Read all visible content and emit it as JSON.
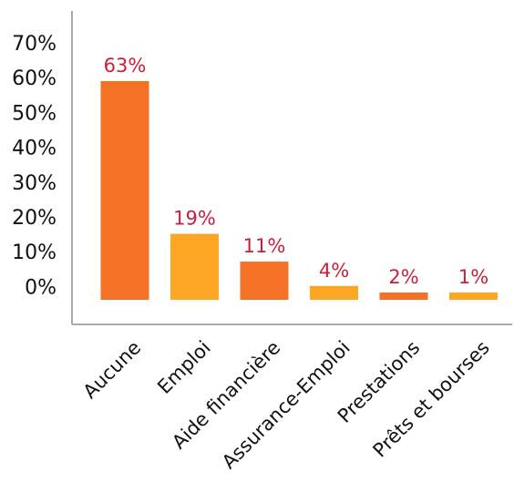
{
  "chart_data": {
    "type": "bar",
    "categories": [
      "Aucune",
      "Emploi",
      "Aide financière",
      "Assurance-Emploi",
      "Prestations",
      "Prêts et bourses"
    ],
    "values": [
      63,
      19,
      11,
      4,
      2,
      1
    ],
    "data_labels": [
      "63%",
      "19%",
      "11%",
      "4%",
      "2%",
      "1%"
    ],
    "yticks": [
      "70%",
      "60%",
      "50%",
      "40%",
      "30%",
      "20%",
      "10%",
      "0%"
    ],
    "ylim": [
      0,
      70
    ],
    "grid": false,
    "legend": "none",
    "colors": {
      "bar_dark": "#f47126",
      "bar_light": "#fca623",
      "label": "#c8203c",
      "axis": "#aaaaaa"
    }
  }
}
